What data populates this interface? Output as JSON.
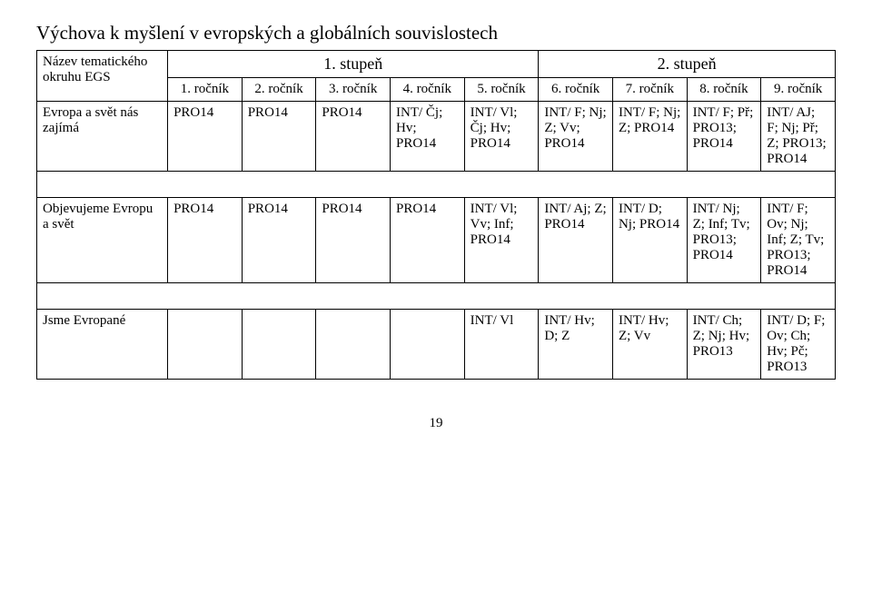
{
  "title": "Výchova k myšlení v evropských a globálních souvislostech",
  "stage1": "1. stupeň",
  "stage2": "2. stupeň",
  "headerRowLabel": "Název tematického okruhu EGS",
  "cols": {
    "c1": "1. ročník",
    "c2": "2. ročník",
    "c3": "3. ročník",
    "c4": "4. ročník",
    "c5": "5. ročník",
    "c6": "6. ročník",
    "c7": "7. ročník",
    "c8": "8. ročník",
    "c9": "9. ročník"
  },
  "rows": {
    "r1": {
      "label": "Evropa a svět nás zajímá",
      "c1": "PRO14",
      "c2": "PRO14",
      "c3": "PRO14",
      "c4": "INT/ Čj; Hv; PRO14",
      "c5": "INT/ Vl; Čj; Hv; PRO14",
      "c6": "INT/ F; Nj; Z; Vv; PRO14",
      "c7": "INT/ F; Nj; Z; PRO14",
      "c8": "INT/ F; Př; PRO13; PRO14",
      "c9": "INT/ AJ; F; Nj; Př; Z; PRO13; PRO14"
    },
    "r2": {
      "label": "Objevujeme Evropu a svět",
      "c1": "PRO14",
      "c2": "PRO14",
      "c3": "PRO14",
      "c4": "PRO14",
      "c5": "INT/ Vl; Vv; Inf; PRO14",
      "c6": "INT/ Aj; Z; PRO14",
      "c7": "INT/ D; Nj; PRO14",
      "c8": "INT/ Nj; Z; Inf; Tv; PRO13; PRO14",
      "c9": "INT/ F; Ov; Nj; Inf; Z; Tv; PRO13; PRO14"
    },
    "r3": {
      "label": "Jsme Evropané",
      "c1": "",
      "c2": "",
      "c3": "",
      "c4": "",
      "c5": "INT/ Vl",
      "c6": "INT/ Hv; D; Z",
      "c7": "INT/ Hv; Z; Vv",
      "c8": "INT/ Ch; Z; Nj; Hv; PRO13",
      "c9": "INT/ D; F; Ov; Ch; Hv; Pč; PRO13"
    }
  },
  "pageNumber": "19",
  "style": {
    "background_color": "#ffffff",
    "text_color": "#000000",
    "border_color": "#000000",
    "font_family": "Times New Roman",
    "title_fontsize": 21,
    "cell_fontsize": 15,
    "stage_fontsize": 18
  }
}
